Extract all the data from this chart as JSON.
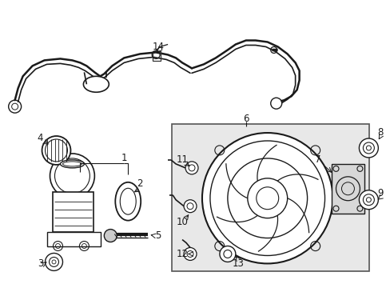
{
  "bg_color": "#ffffff",
  "box_bg": "#e8e8e8",
  "line_color": "#1a1a1a",
  "label_fontsize": 8.5,
  "figsize": [
    4.89,
    3.6
  ],
  "dpi": 100
}
